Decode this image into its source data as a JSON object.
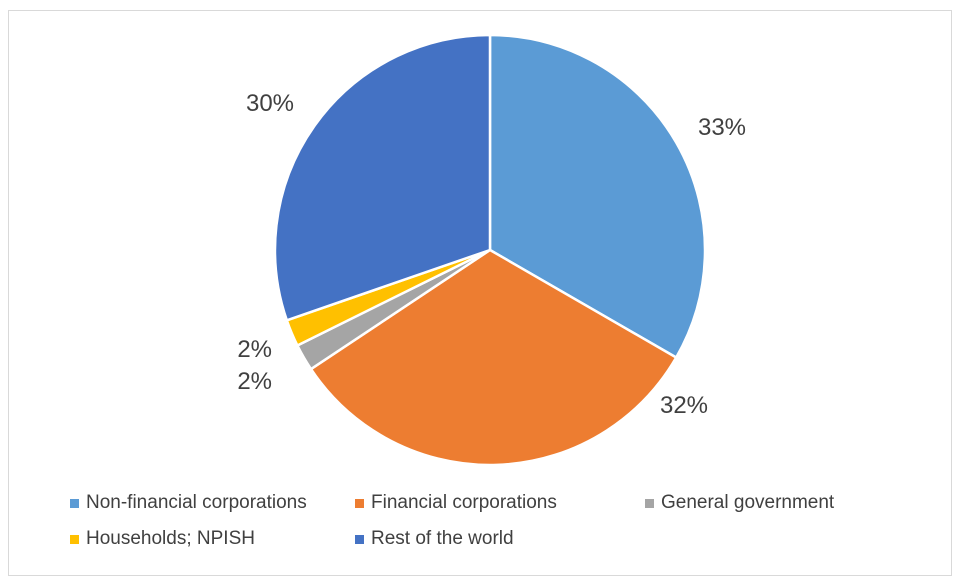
{
  "chart_data": {
    "type": "pie",
    "categories": [
      "Non-financial corporations",
      "Financial corporations",
      "General government",
      "Households; NPISH",
      "Rest of the world"
    ],
    "values": [
      33,
      32,
      2,
      2,
      30
    ],
    "data_labels": [
      "33%",
      "32%",
      "2%",
      "2%",
      "30%"
    ],
    "colors": [
      "#5b9bd5",
      "#ed7d31",
      "#a5a5a5",
      "#ffc000",
      "#4472c4"
    ],
    "legend_position": "bottom",
    "title": ""
  }
}
